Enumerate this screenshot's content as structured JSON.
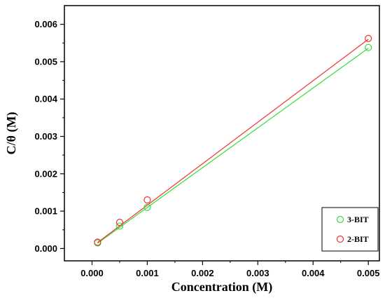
{
  "chart_data": {
    "type": "scatter",
    "xlabel": "Concentration (M)",
    "ylabel": "C/θ (M)",
    "xlim": [
      -0.0005,
      0.0052
    ],
    "ylim": [
      -0.00033,
      0.0065
    ],
    "x_ticks": [
      0.0,
      0.001,
      0.002,
      0.003,
      0.004,
      0.005
    ],
    "x_tick_labels": [
      "0.000",
      "0.001",
      "0.002",
      "0.003",
      "0.004",
      "0.005"
    ],
    "y_ticks": [
      0.0,
      0.001,
      0.002,
      0.003,
      0.004,
      0.005,
      0.006
    ],
    "y_tick_labels": [
      "0.000",
      "0.001",
      "0.002",
      "0.003",
      "0.004",
      "0.005",
      "0.006"
    ],
    "grid": false,
    "legend_position": "bottom-right",
    "series": [
      {
        "name": "3-BIT",
        "color": "#33dd33",
        "marker": "open-circle",
        "x": [
          0.0001,
          0.0005,
          0.001,
          0.005
        ],
        "y": [
          0.00015,
          0.0006,
          0.0011,
          0.00538
        ],
        "fit_line": [
          [
            0.0001,
            0.00014
          ],
          [
            0.005,
            0.00536
          ]
        ]
      },
      {
        "name": "2-BIT",
        "color": "#ee3333",
        "marker": "open-circle",
        "x": [
          0.0001,
          0.0005,
          0.001,
          0.005
        ],
        "y": [
          0.00017,
          0.0007,
          0.0013,
          0.00562
        ],
        "fit_line": [
          [
            0.0001,
            0.00016
          ],
          [
            0.005,
            0.0056
          ]
        ]
      }
    ]
  }
}
